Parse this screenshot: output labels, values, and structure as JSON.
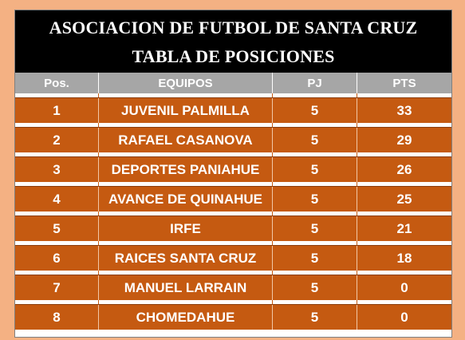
{
  "header": {
    "title_line1": "ASOCIACION DE FUTBOL DE SANTA CRUZ",
    "title_line2": "TABLA DE POSICIONES"
  },
  "columns": {
    "pos": "Pos.",
    "equipos": "EQUIPOS",
    "pj": "PJ",
    "pts": "PTS"
  },
  "rows": [
    {
      "pos": "1",
      "team": "JUVENIL PALMILLA",
      "pj": "5",
      "pts": "33"
    },
    {
      "pos": "2",
      "team": "RAFAEL CASANOVA",
      "pj": "5",
      "pts": "29"
    },
    {
      "pos": "3",
      "team": "DEPORTES PANIAHUE",
      "pj": "5",
      "pts": "26"
    },
    {
      "pos": "4",
      "team": "AVANCE DE QUINAHUE",
      "pj": "5",
      "pts": "25"
    },
    {
      "pos": "5",
      "team": "IRFE",
      "pj": "5",
      "pts": "21"
    },
    {
      "pos": "6",
      "team": "RAICES SANTA CRUZ",
      "pj": "5",
      "pts": "18"
    },
    {
      "pos": "7",
      "team": "MANUEL LARRAIN",
      "pj": "5",
      "pts": "0"
    },
    {
      "pos": "8",
      "team": "CHOMEDAHUE",
      "pj": "5",
      "pts": "0"
    }
  ],
  "colors": {
    "page_background": "#f4b183",
    "header_background": "#000000",
    "column_header_background": "#a6a6a6",
    "row_background": "#c55a11",
    "text": "#ffffff"
  }
}
